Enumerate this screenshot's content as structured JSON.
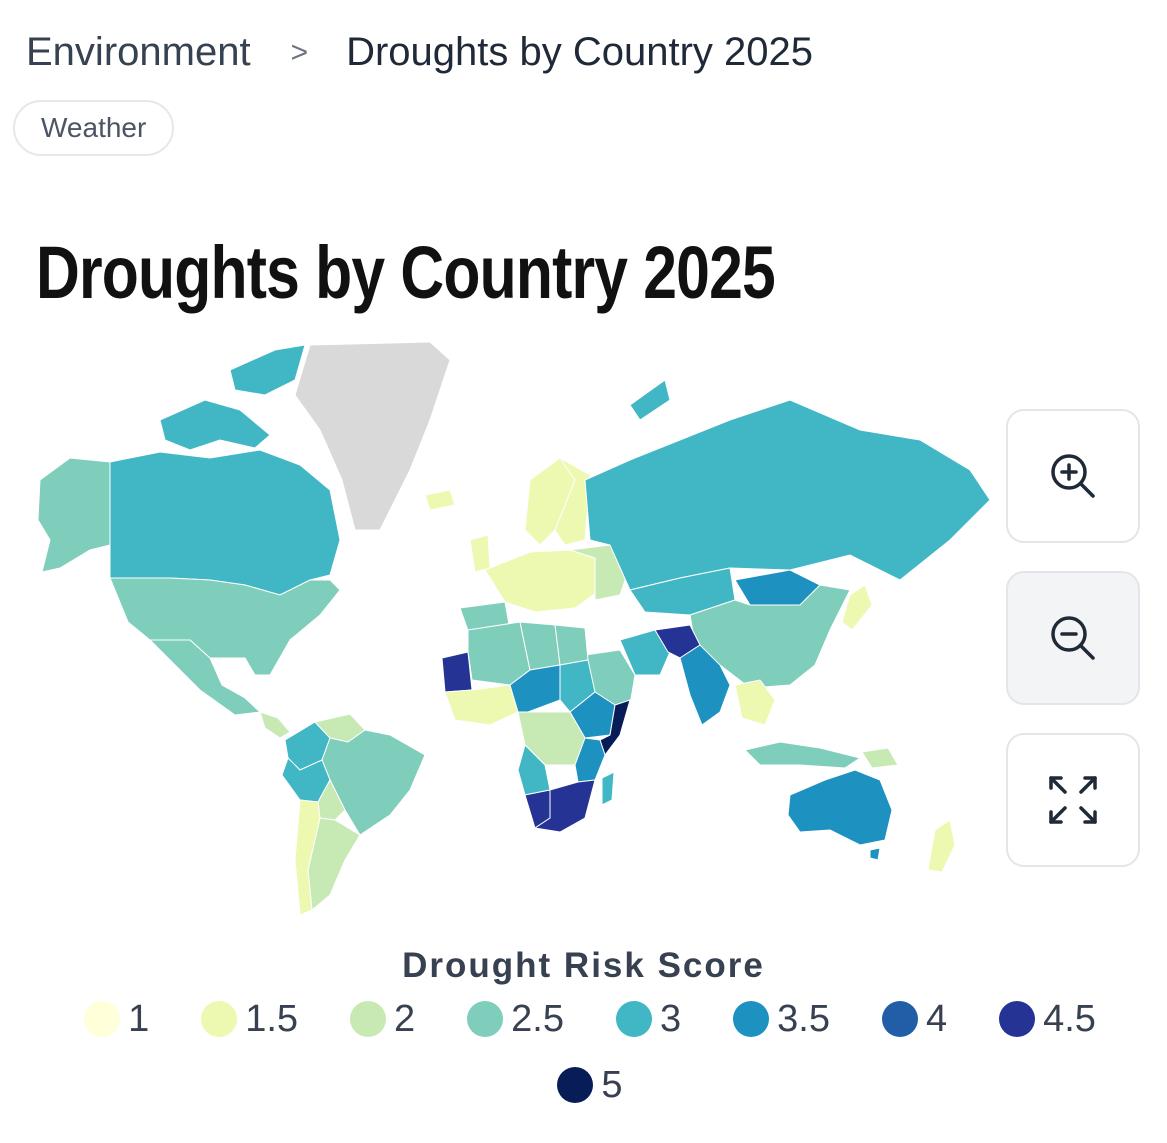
{
  "breadcrumb": {
    "section": "Environment",
    "separator": ">",
    "current": "Droughts by Country 2025"
  },
  "tag": "Weather",
  "title": "Droughts by Country 2025",
  "map": {
    "projection": "equirectangular world choropleth",
    "no_data_color": "#d9d9d9",
    "regions": [
      {
        "name": "Greenland",
        "score": null
      },
      {
        "name": "Canada",
        "score": 3
      },
      {
        "name": "Alaska (United States)",
        "score": 2.5
      },
      {
        "name": "United States",
        "score": 2.5
      },
      {
        "name": "Mexico",
        "score": 2.5
      },
      {
        "name": "Colombia",
        "score": 3
      },
      {
        "name": "Brazil",
        "score": 2.5
      },
      {
        "name": "Peru",
        "score": 3
      },
      {
        "name": "Argentina",
        "score": 2
      },
      {
        "name": "Chile",
        "score": 1.5
      },
      {
        "name": "Iceland",
        "score": 1.5
      },
      {
        "name": "Norway",
        "score": 1.5
      },
      {
        "name": "Sweden",
        "score": 1.5
      },
      {
        "name": "Finland",
        "score": 1.5
      },
      {
        "name": "Western Europe",
        "score": 1.5
      },
      {
        "name": "Spain",
        "score": 2.5
      },
      {
        "name": "Russia",
        "score": 3
      },
      {
        "name": "Kazakhstan",
        "score": 3
      },
      {
        "name": "Mongolia",
        "score": 3.5
      },
      {
        "name": "China",
        "score": 2.5
      },
      {
        "name": "Japan",
        "score": 1.5
      },
      {
        "name": "India",
        "score": 3.5
      },
      {
        "name": "Afghanistan",
        "score": 4.5
      },
      {
        "name": "Iran",
        "score": 3
      },
      {
        "name": "Saudi Arabia",
        "score": 2.5
      },
      {
        "name": "Mauritania",
        "score": 4.5
      },
      {
        "name": "Algeria",
        "score": 2.5
      },
      {
        "name": "Libya",
        "score": 2.5
      },
      {
        "name": "Egypt",
        "score": 2.5
      },
      {
        "name": "Sudan",
        "score": 3
      },
      {
        "name": "Chad",
        "score": 3.5
      },
      {
        "name": "Ethiopia",
        "score": 3.5
      },
      {
        "name": "Somalia",
        "score": 5
      },
      {
        "name": "DR Congo",
        "score": 2
      },
      {
        "name": "Angola",
        "score": 3
      },
      {
        "name": "Namibia",
        "score": 4.5
      },
      {
        "name": "South Africa",
        "score": 4.5
      },
      {
        "name": "Madagascar",
        "score": 3
      },
      {
        "name": "Southeast Asia",
        "score": 1.5
      },
      {
        "name": "Indonesia",
        "score": 2.5
      },
      {
        "name": "Papua New Guinea",
        "score": 2
      },
      {
        "name": "Australia",
        "score": 3.5
      },
      {
        "name": "New Zealand",
        "score": 1.5
      }
    ]
  },
  "controls": {
    "zoom_in": "zoom-in-icon",
    "zoom_out": "zoom-out-icon",
    "fullscreen": "expand-icon"
  },
  "legend": {
    "title": "Drought Risk Score",
    "items": [
      {
        "label": "1",
        "color": "#ffffd9"
      },
      {
        "label": "1.5",
        "color": "#edf8b1"
      },
      {
        "label": "2",
        "color": "#c7e9b4"
      },
      {
        "label": "2.5",
        "color": "#7fcdbb"
      },
      {
        "label": "3",
        "color": "#41b6c4"
      },
      {
        "label": "3.5",
        "color": "#1d91c0"
      },
      {
        "label": "4",
        "color": "#225ea8"
      },
      {
        "label": "4.5",
        "color": "#253494"
      },
      {
        "label": "5",
        "color": "#081d58"
      }
    ]
  }
}
